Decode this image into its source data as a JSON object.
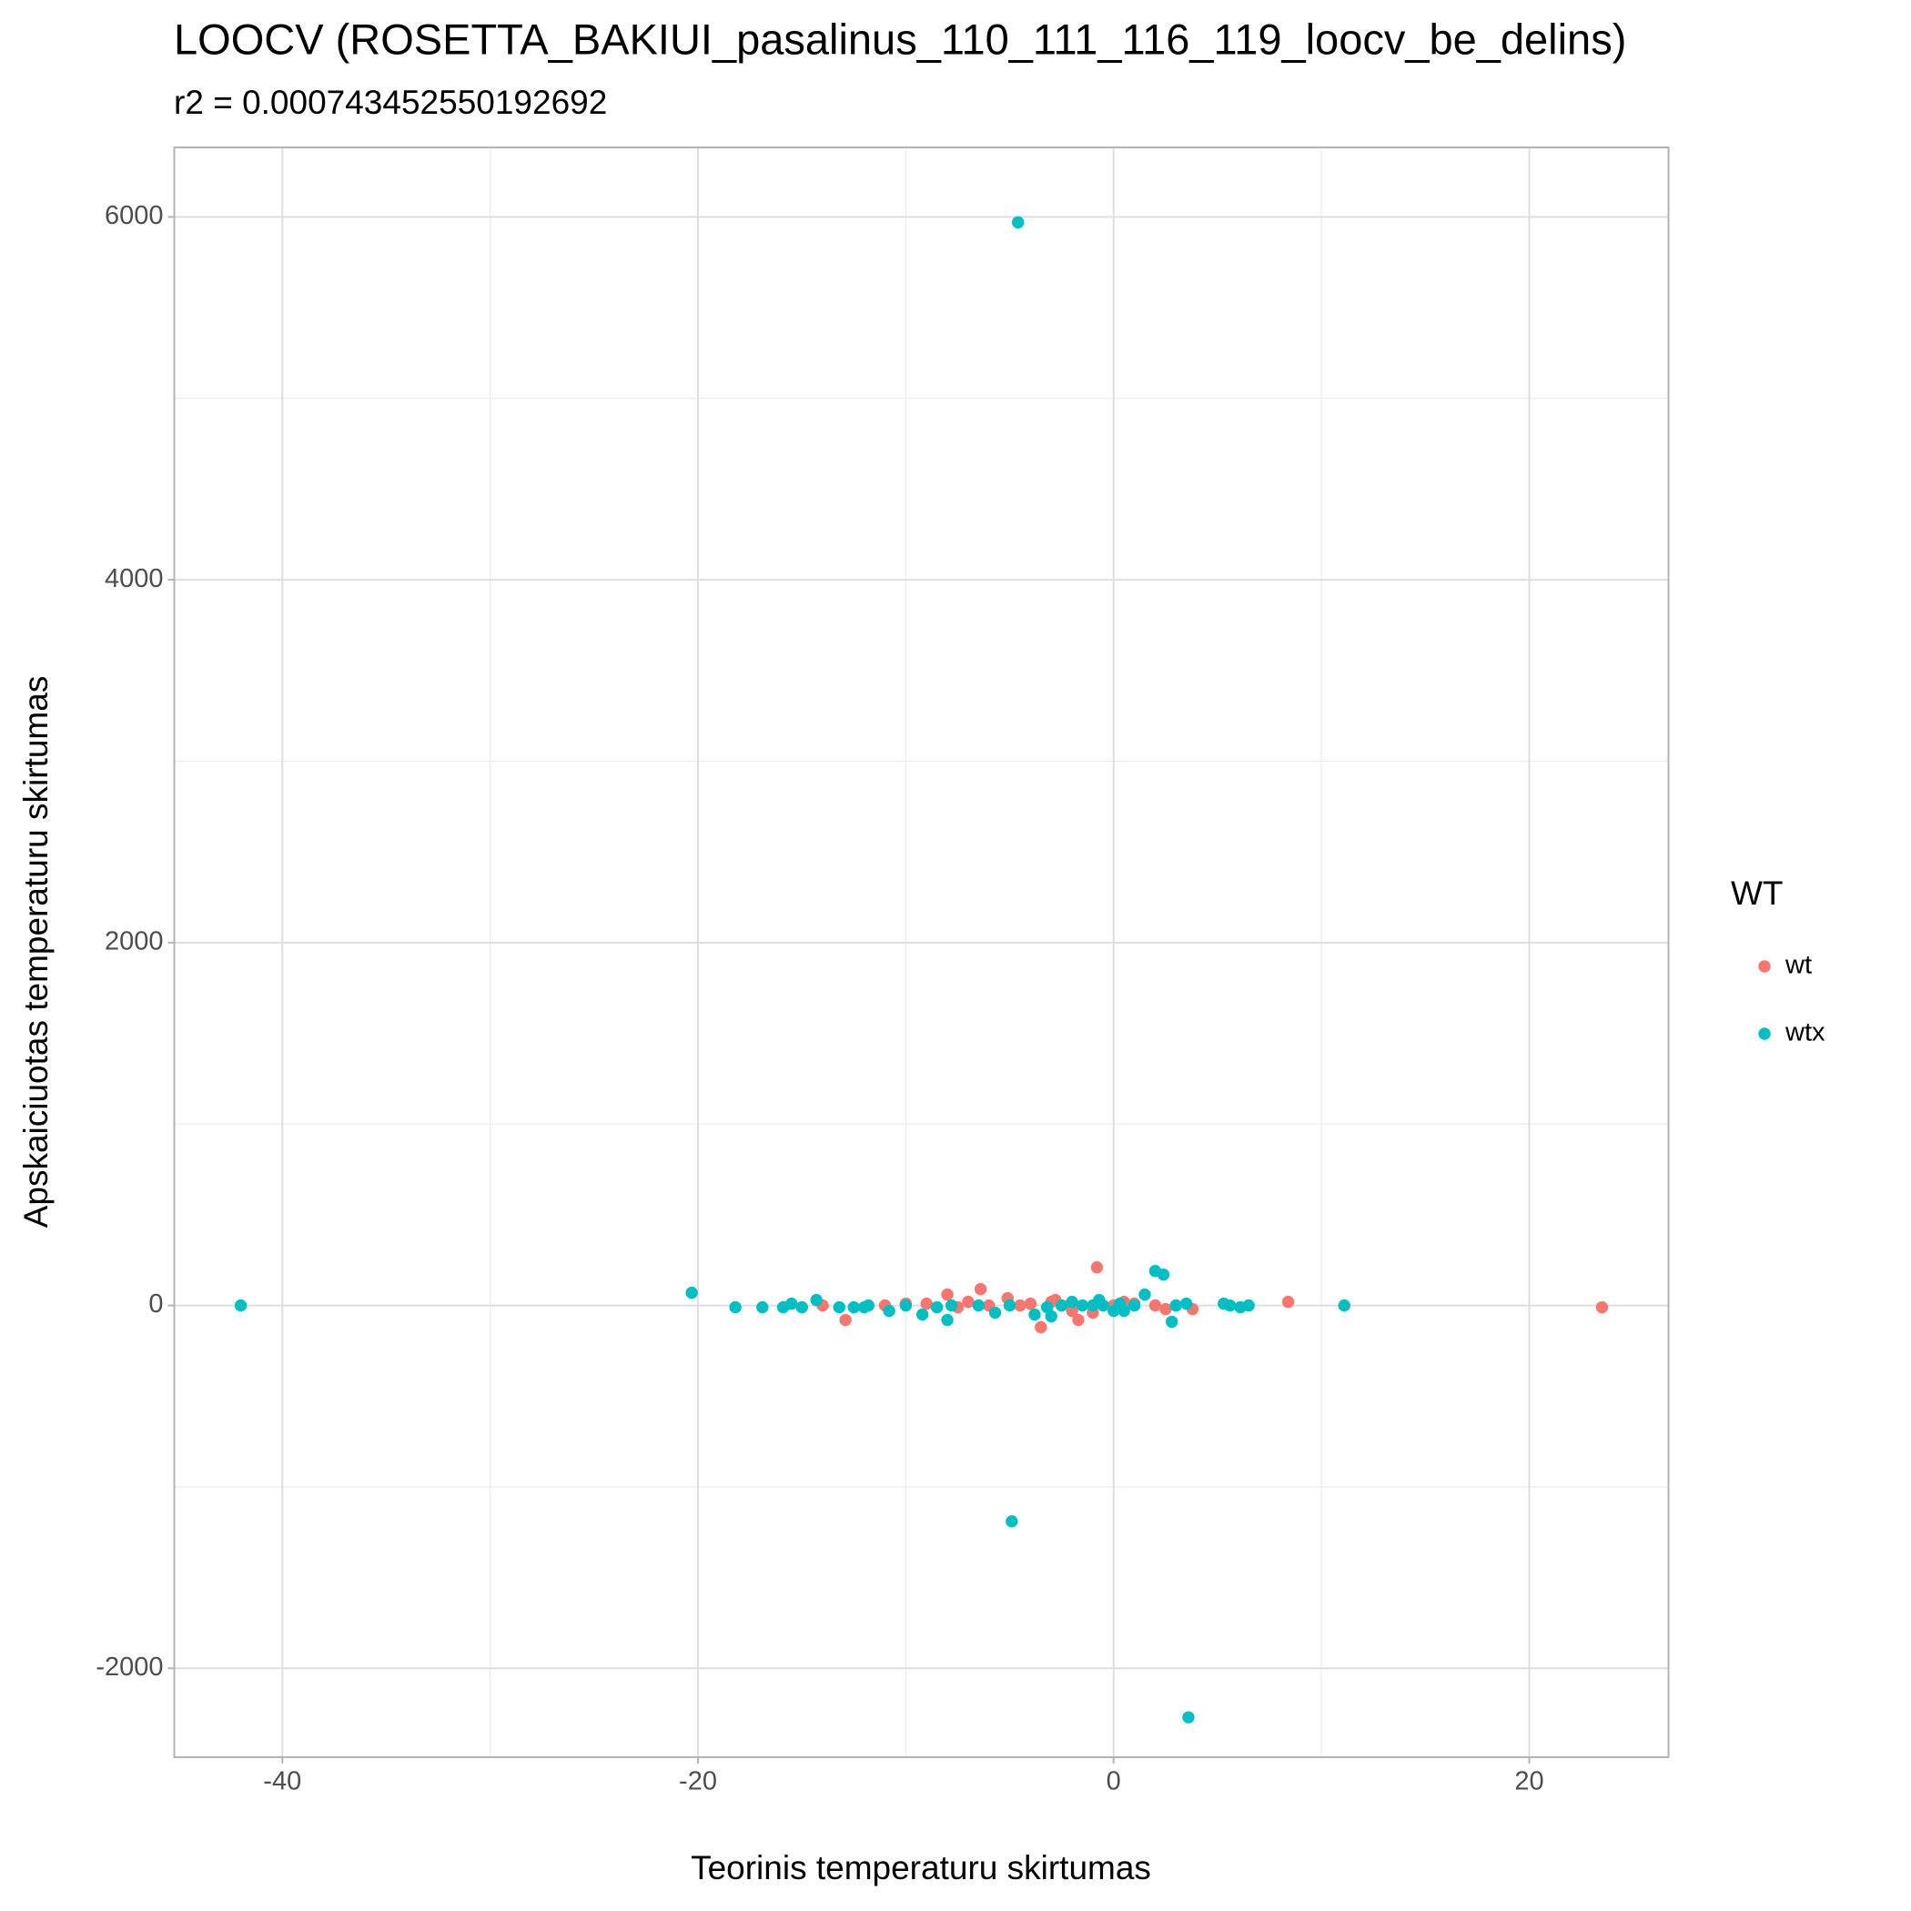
{
  "chart_data": {
    "type": "scatter",
    "title": "LOOCV (ROSETTA_BAKIUI_pasalinus_110_111_116_119_loocv_be_delins)",
    "subtitle": "r2 = 0.000743452550192692",
    "x_label": "Teorinis temperaturu skirtumas",
    "y_label": "Apskaiciuotas temperaturu skirtumas",
    "legend_title": "WT",
    "legend_position": "right",
    "grid": true,
    "xlim": [
      -45.2,
      26.7
    ],
    "ylim": [
      -2490,
      6383
    ],
    "xticks": [
      -40,
      -20,
      0,
      20
    ],
    "yticks": [
      -2000,
      0,
      2000,
      4000,
      6000
    ],
    "x_minor_grid": [
      -30,
      -10,
      10
    ],
    "y_minor_grid": [
      -1000,
      1000,
      3000,
      5000
    ],
    "series": [
      {
        "name": "wt",
        "color": "#F8766D",
        "x": [
          23.5,
          8.4,
          -0.8,
          -6.4,
          -8,
          -12.9,
          -3.5,
          -1.7,
          -5.1,
          -14,
          -15,
          -11,
          -10,
          -9,
          -7.5,
          -7,
          -6,
          -4.5,
          -3,
          -2.5,
          -2,
          -1,
          0,
          1,
          2,
          2.5,
          3,
          3.8,
          -4,
          -2.8,
          0.5
        ],
        "values": [
          -10,
          20,
          210,
          90,
          60,
          -80,
          -120,
          -80,
          40,
          0,
          -10,
          0,
          10,
          10,
          -10,
          20,
          0,
          0,
          20,
          0,
          -30,
          -40,
          0,
          10,
          0,
          -20,
          0,
          -20,
          10,
          30,
          20
        ]
      },
      {
        "name": "wtx",
        "color": "#00BFC4",
        "x": [
          -42,
          -20.3,
          -18.2,
          -16.9,
          -15.9,
          -15.5,
          -15,
          -14.3,
          -13.2,
          -12.5,
          -12,
          -11.8,
          -10.8,
          -10,
          -9.2,
          -8.5,
          -8,
          -7.8,
          -6.5,
          -5.7,
          -5,
          -4.6,
          -4.9,
          3.6,
          -3.8,
          -3.2,
          -3,
          -2.5,
          -2,
          -1.5,
          -1,
          -0.7,
          -0.5,
          0,
          0.5,
          1,
          1.5,
          2,
          2.4,
          2.8,
          3,
          3.5,
          5.3,
          5.6,
          6.1,
          6.5,
          11.1,
          0.3
        ],
        "values": [
          0,
          70,
          -10,
          -10,
          -10,
          10,
          -10,
          30,
          -10,
          -10,
          -10,
          0,
          -30,
          0,
          -50,
          -10,
          -80,
          0,
          0,
          -40,
          0,
          5970,
          -1190,
          -2270,
          -50,
          -10,
          -60,
          0,
          20,
          0,
          0,
          30,
          0,
          -30,
          -30,
          0,
          60,
          190,
          170,
          -90,
          0,
          10,
          10,
          0,
          -10,
          0,
          0,
          10
        ]
      }
    ]
  }
}
